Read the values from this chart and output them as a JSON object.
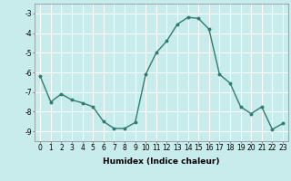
{
  "x": [
    0,
    1,
    2,
    3,
    4,
    5,
    6,
    7,
    8,
    9,
    10,
    11,
    12,
    13,
    14,
    15,
    16,
    17,
    18,
    19,
    20,
    21,
    22,
    23
  ],
  "y": [
    -6.2,
    -7.5,
    -7.1,
    -7.4,
    -7.55,
    -7.75,
    -8.5,
    -8.85,
    -8.85,
    -8.55,
    -6.1,
    -5.0,
    -4.4,
    -3.55,
    -3.2,
    -3.25,
    -3.8,
    -6.1,
    -6.55,
    -7.75,
    -8.1,
    -7.75,
    -8.9,
    -8.6
  ],
  "line_color": "#2e7d6e",
  "marker": "o",
  "marker_size": 1.8,
  "bg_color": "#c8ebeb",
  "grid_color": "#ffffff",
  "xlabel": "Humidex (Indice chaleur)",
  "xlim": [
    -0.5,
    23.5
  ],
  "ylim": [
    -9.5,
    -2.5
  ],
  "yticks": [
    -9,
    -8,
    -7,
    -6,
    -5,
    -4,
    -3
  ],
  "xticks": [
    0,
    1,
    2,
    3,
    4,
    5,
    6,
    7,
    8,
    9,
    10,
    11,
    12,
    13,
    14,
    15,
    16,
    17,
    18,
    19,
    20,
    21,
    22,
    23
  ],
  "xlabel_fontsize": 6.5,
  "tick_fontsize": 5.5,
  "line_width": 1.0
}
